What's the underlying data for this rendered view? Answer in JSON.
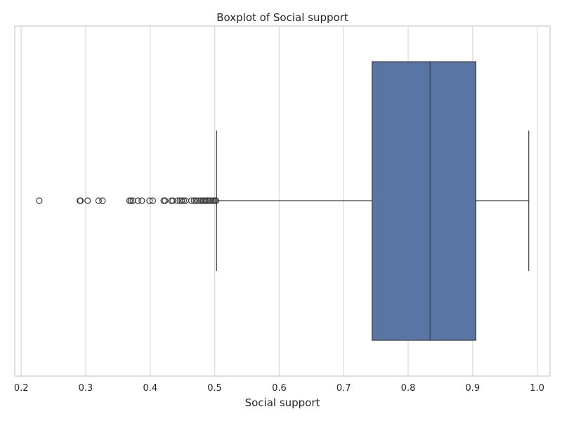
{
  "chart_data": {
    "type": "boxplot",
    "title": "Boxplot of Social support",
    "xlabel": "Social support",
    "ylabel": "",
    "xlim": [
      0.19,
      1.02
    ],
    "xticks": [
      0.2,
      0.3,
      0.4,
      0.5,
      0.6,
      0.7,
      0.8,
      0.9,
      1.0
    ],
    "xtick_labels": [
      "0.2",
      "0.3",
      "0.4",
      "0.5",
      "0.6",
      "0.7",
      "0.8",
      "0.9",
      "1.0"
    ],
    "grid": true,
    "orientation": "horizontal",
    "box": {
      "whisker_low": 0.503,
      "q1": 0.744,
      "median": 0.834,
      "q3": 0.905,
      "whisker_high": 0.987
    },
    "outliers": [
      0.228,
      0.291,
      0.292,
      0.303,
      0.32,
      0.326,
      0.368,
      0.37,
      0.373,
      0.381,
      0.387,
      0.399,
      0.404,
      0.421,
      0.423,
      0.433,
      0.435,
      0.442,
      0.446,
      0.449,
      0.452,
      0.455,
      0.464,
      0.468,
      0.471,
      0.474,
      0.478,
      0.481,
      0.483,
      0.485,
      0.487,
      0.489,
      0.492,
      0.495,
      0.497,
      0.499,
      0.501,
      0.502
    ],
    "colors": {
      "box_fill": "#5875a4",
      "line": "#3f3f3f",
      "grid": "#d9d9d9",
      "frame": "#cccccc"
    }
  }
}
